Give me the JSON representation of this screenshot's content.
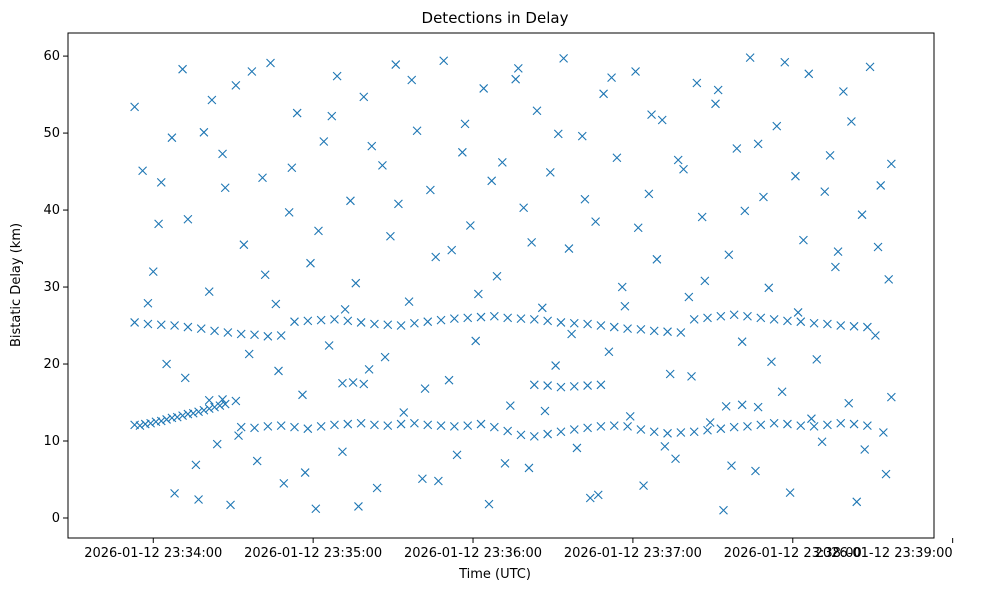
{
  "chart_data": {
    "type": "scatter",
    "title": "Detections in Delay",
    "xlabel": "Time (UTC)",
    "ylabel": "Bistatic Delay (km)",
    "x_unit": "seconds",
    "x_start_label": "2026-01-12 23:33:53",
    "xlim_seconds": [
      -25,
      300
    ],
    "ylim": [
      -2.6,
      63
    ],
    "x_ticks": [
      {
        "value": 7,
        "label": "2026-01-12 23:34:00"
      },
      {
        "value": 67,
        "label": "2026-01-12 23:35:00"
      },
      {
        "value": 127,
        "label": "2026-01-12 23:36:00"
      },
      {
        "value": 187,
        "label": "2026-01-12 23:37:00"
      },
      {
        "value": 247,
        "label": "2026-01-12 23:38:00"
      },
      {
        "value": 307,
        "label": "2026-01-12 23:39:00"
      }
    ],
    "y_ticks": [
      0,
      10,
      20,
      30,
      40,
      50,
      60
    ],
    "marker": "x",
    "color": "#1f77b4",
    "grid": false,
    "legend": "none",
    "series": [
      {
        "points": [
          [
            0,
            12.1
          ],
          [
            2,
            12.0
          ],
          [
            4,
            12.2
          ],
          [
            6,
            12.3
          ],
          [
            8,
            12.5
          ],
          [
            10,
            12.6
          ],
          [
            12,
            12.8
          ],
          [
            14,
            13.0
          ],
          [
            16,
            13.1
          ],
          [
            18,
            13.3
          ],
          [
            20,
            13.5
          ],
          [
            22,
            13.6
          ],
          [
            24,
            13.8
          ],
          [
            26,
            14.0
          ],
          [
            28,
            14.2
          ],
          [
            30,
            14.4
          ],
          [
            32,
            14.6
          ],
          [
            34,
            14.8
          ],
          [
            40,
            11.8
          ],
          [
            45,
            11.7
          ],
          [
            50,
            11.9
          ],
          [
            55,
            12.0
          ],
          [
            60,
            11.8
          ],
          [
            65,
            11.6
          ],
          [
            70,
            11.9
          ],
          [
            75,
            12.1
          ],
          [
            80,
            12.2
          ],
          [
            85,
            12.3
          ],
          [
            90,
            12.1
          ],
          [
            95,
            12.0
          ],
          [
            100,
            12.2
          ],
          [
            105,
            12.3
          ],
          [
            110,
            12.1
          ],
          [
            115,
            12.0
          ],
          [
            120,
            11.9
          ],
          [
            125,
            12.0
          ],
          [
            130,
            12.2
          ],
          [
            135,
            11.8
          ],
          [
            140,
            11.3
          ],
          [
            145,
            10.8
          ],
          [
            150,
            10.6
          ],
          [
            155,
            10.9
          ],
          [
            160,
            11.2
          ],
          [
            165,
            11.5
          ],
          [
            170,
            11.7
          ],
          [
            175,
            11.9
          ],
          [
            180,
            12.0
          ],
          [
            185,
            11.9
          ],
          [
            190,
            11.5
          ],
          [
            195,
            11.2
          ],
          [
            200,
            11.0
          ],
          [
            205,
            11.1
          ],
          [
            210,
            11.2
          ],
          [
            215,
            11.4
          ],
          [
            220,
            11.6
          ],
          [
            225,
            11.8
          ],
          [
            230,
            11.9
          ],
          [
            235,
            12.1
          ],
          [
            240,
            12.3
          ],
          [
            245,
            12.2
          ],
          [
            250,
            12.0
          ],
          [
            255,
            11.9
          ],
          [
            260,
            12.1
          ],
          [
            265,
            12.3
          ],
          [
            270,
            12.2
          ],
          [
            275,
            12.0
          ],
          [
            0,
            25.4
          ],
          [
            5,
            25.2
          ],
          [
            10,
            25.1
          ],
          [
            15,
            25.0
          ],
          [
            20,
            24.8
          ],
          [
            25,
            24.6
          ],
          [
            30,
            24.3
          ],
          [
            35,
            24.1
          ],
          [
            40,
            23.9
          ],
          [
            45,
            23.8
          ],
          [
            50,
            23.6
          ],
          [
            55,
            23.7
          ],
          [
            60,
            25.5
          ],
          [
            65,
            25.6
          ],
          [
            70,
            25.7
          ],
          [
            75,
            25.8
          ],
          [
            80,
            25.6
          ],
          [
            85,
            25.4
          ],
          [
            90,
            25.2
          ],
          [
            95,
            25.1
          ],
          [
            100,
            25.0
          ],
          [
            105,
            25.3
          ],
          [
            110,
            25.5
          ],
          [
            115,
            25.7
          ],
          [
            120,
            25.9
          ],
          [
            125,
            26.0
          ],
          [
            130,
            26.1
          ],
          [
            135,
            26.2
          ],
          [
            140,
            26.0
          ],
          [
            145,
            25.9
          ],
          [
            150,
            25.8
          ],
          [
            155,
            25.6
          ],
          [
            160,
            25.4
          ],
          [
            165,
            25.3
          ],
          [
            170,
            25.2
          ],
          [
            175,
            25.0
          ],
          [
            180,
            24.8
          ],
          [
            185,
            24.6
          ],
          [
            190,
            24.5
          ],
          [
            195,
            24.3
          ],
          [
            200,
            24.2
          ],
          [
            205,
            24.1
          ],
          [
            210,
            25.8
          ],
          [
            215,
            26.0
          ],
          [
            220,
            26.2
          ],
          [
            225,
            26.4
          ],
          [
            230,
            26.2
          ],
          [
            235,
            26.0
          ],
          [
            240,
            25.8
          ],
          [
            245,
            25.6
          ],
          [
            250,
            25.5
          ],
          [
            255,
            25.3
          ],
          [
            260,
            25.2
          ],
          [
            265,
            25.0
          ],
          [
            270,
            24.9
          ],
          [
            275,
            24.8
          ],
          [
            78,
            17.5
          ],
          [
            82,
            17.6
          ],
          [
            86,
            17.4
          ],
          [
            150,
            17.3
          ],
          [
            155,
            17.2
          ],
          [
            160,
            17.0
          ],
          [
            165,
            17.1
          ],
          [
            170,
            17.2
          ],
          [
            175,
            17.3
          ],
          [
            28,
            15.3
          ],
          [
            33,
            15.4
          ],
          [
            38,
            15.2
          ],
          [
            222,
            14.5
          ],
          [
            228,
            14.7
          ],
          [
            234,
            14.4
          ],
          [
            0,
            53.4
          ],
          [
            3,
            45.1
          ],
          [
            7,
            32.0
          ],
          [
            10,
            43.6
          ],
          [
            12,
            20.0
          ],
          [
            15,
            3.2
          ],
          [
            18,
            58.3
          ],
          [
            20,
            38.8
          ],
          [
            23,
            6.9
          ],
          [
            26,
            50.1
          ],
          [
            28,
            29.4
          ],
          [
            31,
            9.6
          ],
          [
            33,
            47.3
          ],
          [
            36,
            1.7
          ],
          [
            38,
            56.2
          ],
          [
            41,
            35.5
          ],
          [
            43,
            21.3
          ],
          [
            46,
            7.4
          ],
          [
            48,
            44.2
          ],
          [
            51,
            59.1
          ],
          [
            53,
            27.8
          ],
          [
            56,
            4.5
          ],
          [
            58,
            39.7
          ],
          [
            61,
            52.6
          ],
          [
            63,
            16.0
          ],
          [
            66,
            33.1
          ],
          [
            68,
            1.2
          ],
          [
            71,
            48.9
          ],
          [
            73,
            22.4
          ],
          [
            76,
            57.4
          ],
          [
            78,
            8.6
          ],
          [
            81,
            41.2
          ],
          [
            83,
            30.5
          ],
          [
            86,
            54.7
          ],
          [
            88,
            19.3
          ],
          [
            91,
            3.9
          ],
          [
            93,
            45.8
          ],
          [
            96,
            36.6
          ],
          [
            98,
            58.9
          ],
          [
            101,
            13.7
          ],
          [
            103,
            28.1
          ],
          [
            106,
            50.3
          ],
          [
            108,
            5.1
          ],
          [
            111,
            42.6
          ],
          [
            113,
            33.9
          ],
          [
            116,
            59.4
          ],
          [
            118,
            17.9
          ],
          [
            121,
            8.2
          ],
          [
            123,
            47.5
          ],
          [
            126,
            38.0
          ],
          [
            128,
            23.0
          ],
          [
            131,
            55.8
          ],
          [
            133,
            1.8
          ],
          [
            136,
            31.4
          ],
          [
            138,
            46.2
          ],
          [
            141,
            14.6
          ],
          [
            143,
            57.0
          ],
          [
            146,
            40.3
          ],
          [
            148,
            6.5
          ],
          [
            151,
            52.9
          ],
          [
            153,
            27.3
          ],
          [
            156,
            44.9
          ],
          [
            158,
            19.8
          ],
          [
            161,
            59.7
          ],
          [
            163,
            35.0
          ],
          [
            166,
            9.1
          ],
          [
            168,
            49.6
          ],
          [
            171,
            2.6
          ],
          [
            173,
            38.5
          ],
          [
            176,
            55.1
          ],
          [
            178,
            21.6
          ],
          [
            181,
            46.8
          ],
          [
            183,
            30.0
          ],
          [
            186,
            13.2
          ],
          [
            188,
            58.0
          ],
          [
            191,
            4.2
          ],
          [
            193,
            42.1
          ],
          [
            196,
            33.6
          ],
          [
            198,
            51.7
          ],
          [
            201,
            18.7
          ],
          [
            203,
            7.7
          ],
          [
            206,
            45.3
          ],
          [
            208,
            28.7
          ],
          [
            211,
            56.5
          ],
          [
            213,
            39.1
          ],
          [
            216,
            12.4
          ],
          [
            218,
            53.8
          ],
          [
            221,
            1.0
          ],
          [
            223,
            34.2
          ],
          [
            226,
            48.0
          ],
          [
            228,
            22.9
          ],
          [
            231,
            59.8
          ],
          [
            233,
            6.1
          ],
          [
            236,
            41.7
          ],
          [
            238,
            29.9
          ],
          [
            241,
            50.9
          ],
          [
            243,
            16.4
          ],
          [
            246,
            3.3
          ],
          [
            248,
            44.4
          ],
          [
            251,
            36.1
          ],
          [
            253,
            57.7
          ],
          [
            256,
            20.6
          ],
          [
            258,
            9.9
          ],
          [
            261,
            47.1
          ],
          [
            263,
            32.6
          ],
          [
            266,
            55.4
          ],
          [
            268,
            14.9
          ],
          [
            271,
            2.1
          ],
          [
            273,
            39.4
          ],
          [
            276,
            58.6
          ],
          [
            278,
            23.7
          ],
          [
            280,
            43.2
          ],
          [
            281,
            11.1
          ],
          [
            282,
            5.7
          ],
          [
            283,
            31.0
          ],
          [
            284,
            46.0
          ],
          [
            5,
            27.9
          ],
          [
            9,
            38.2
          ],
          [
            14,
            49.4
          ],
          [
            19,
            18.2
          ],
          [
            24,
            2.4
          ],
          [
            29,
            54.3
          ],
          [
            34,
            42.9
          ],
          [
            39,
            10.7
          ],
          [
            44,
            58.0
          ],
          [
            49,
            31.6
          ],
          [
            54,
            19.1
          ],
          [
            59,
            45.5
          ],
          [
            64,
            5.9
          ],
          [
            69,
            37.3
          ],
          [
            74,
            52.2
          ],
          [
            79,
            27.1
          ],
          [
            84,
            1.5
          ],
          [
            89,
            48.3
          ],
          [
            94,
            20.9
          ],
          [
            99,
            40.8
          ],
          [
            104,
            56.9
          ],
          [
            109,
            16.8
          ],
          [
            114,
            4.8
          ],
          [
            119,
            34.8
          ],
          [
            124,
            51.2
          ],
          [
            129,
            29.1
          ],
          [
            134,
            43.8
          ],
          [
            139,
            7.1
          ],
          [
            144,
            58.4
          ],
          [
            149,
            35.8
          ],
          [
            154,
            13.9
          ],
          [
            159,
            49.9
          ],
          [
            164,
            23.9
          ],
          [
            169,
            41.4
          ],
          [
            174,
            3.0
          ],
          [
            179,
            57.2
          ],
          [
            184,
            27.5
          ],
          [
            189,
            37.7
          ],
          [
            194,
            52.4
          ],
          [
            199,
            9.3
          ],
          [
            204,
            46.5
          ],
          [
            209,
            18.4
          ],
          [
            214,
            30.8
          ],
          [
            219,
            55.6
          ],
          [
            224,
            6.8
          ],
          [
            229,
            39.9
          ],
          [
            234,
            48.6
          ],
          [
            239,
            20.3
          ],
          [
            244,
            59.2
          ],
          [
            249,
            26.7
          ],
          [
            254,
            12.9
          ],
          [
            259,
            42.4
          ],
          [
            264,
            34.6
          ],
          [
            269,
            51.5
          ],
          [
            274,
            8.9
          ],
          [
            279,
            35.2
          ],
          [
            284,
            15.7
          ]
        ]
      }
    ]
  }
}
